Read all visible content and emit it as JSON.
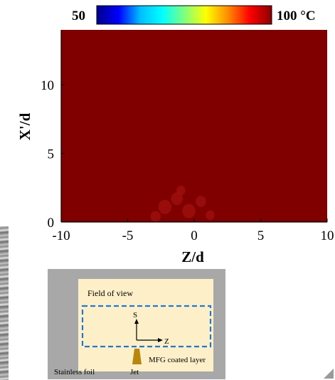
{
  "colorbar": {
    "min_label": "50",
    "max_label": "100 °C",
    "stops": [
      "#00008b",
      "#0000ff",
      "#00bfff",
      "#00ffff",
      "#7fff7f",
      "#ffff00",
      "#ff8c00",
      "#ff0000",
      "#8b0000"
    ]
  },
  "chart_data": {
    "type": "heatmap",
    "title": "",
    "xlabel": "Z/d",
    "ylabel": "X'/d",
    "xlim": [
      -10,
      10
    ],
    "ylim": [
      0,
      14
    ],
    "x_ticks": [
      -10,
      -5,
      0,
      5,
      10
    ],
    "x_tick_labels": [
      "-10",
      "-5",
      "0",
      "5",
      "10"
    ],
    "y_ticks": [
      0,
      5,
      10
    ],
    "y_tick_labels": [
      "0",
      "5",
      "10"
    ],
    "colorbar_range": [
      50,
      100
    ],
    "colorbar_unit": "°C",
    "field_value": 100,
    "hot_spots": [
      {
        "z": -2.2,
        "x": 1.1,
        "r": 0.9
      },
      {
        "z": -1.3,
        "x": 1.7,
        "r": 0.8
      },
      {
        "z": -0.4,
        "x": 0.8,
        "r": 0.9
      },
      {
        "z": -2.9,
        "x": 0.4,
        "r": 0.7
      },
      {
        "z": 0.5,
        "x": 1.5,
        "r": 0.7
      },
      {
        "z": -1.0,
        "x": 2.3,
        "r": 0.6
      },
      {
        "z": 1.2,
        "x": 0.5,
        "r": 0.6
      }
    ],
    "grid": false,
    "colors": {
      "field": "#800000",
      "hot_spot": "#a01010"
    }
  },
  "schematic": {
    "field_of_view": "Field of view",
    "axis_s": "S",
    "axis_z": "Z",
    "mfg_label": "MFG coated layer",
    "foil_label": "Stainless foil",
    "jet_label": "Jet",
    "colors": {
      "panel": "#a8a8a8",
      "inner": "#fdf0c8",
      "dashed": "#1f78d2",
      "jet": "#b8860b"
    }
  }
}
